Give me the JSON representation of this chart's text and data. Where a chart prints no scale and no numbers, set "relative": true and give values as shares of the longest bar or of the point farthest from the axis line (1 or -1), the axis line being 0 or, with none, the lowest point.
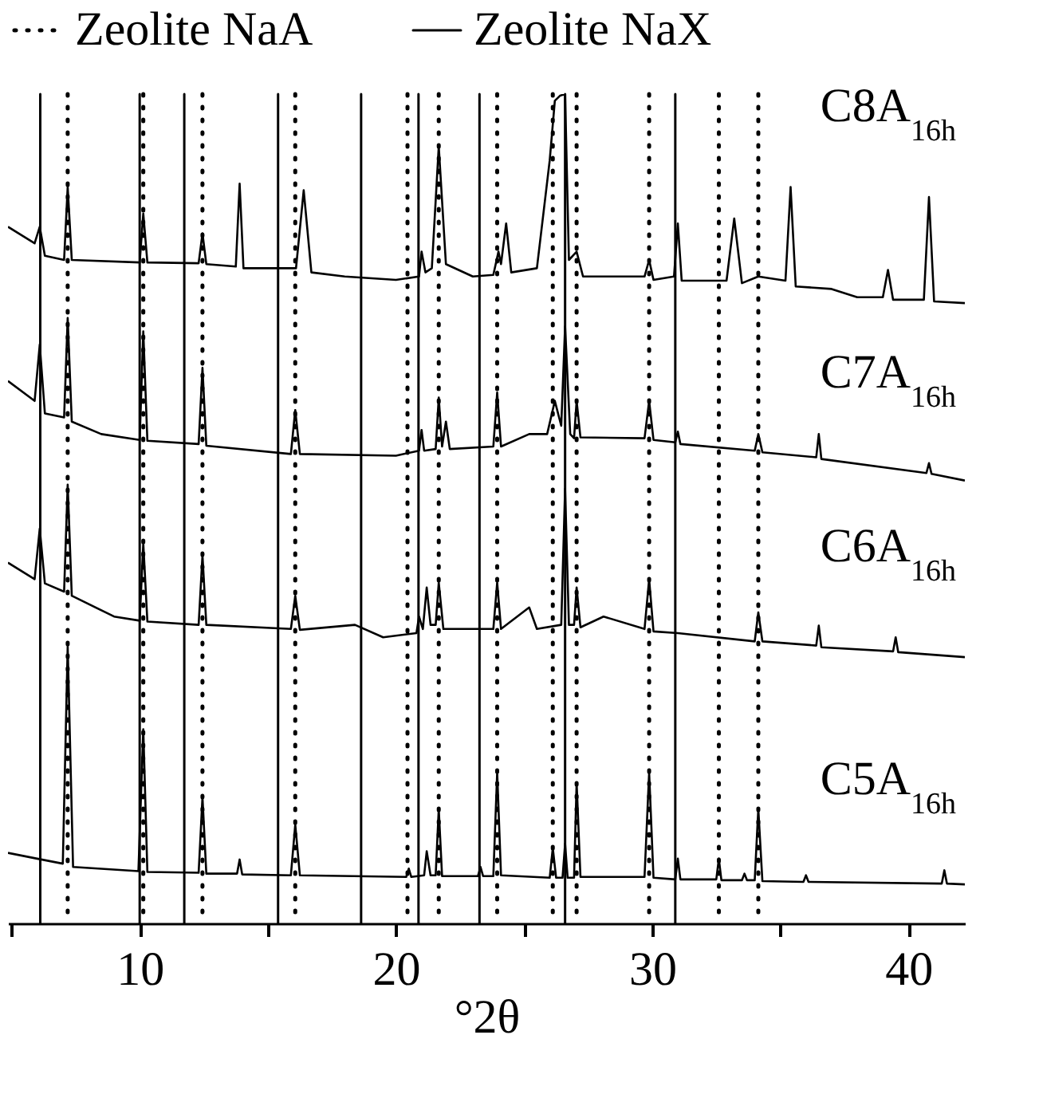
{
  "chart_data": {
    "type": "line",
    "relative": true,
    "xlabel": "°2θ",
    "xlim": [
      4.86,
      42.2
    ],
    "xticks": [
      {
        "value": 5,
        "label": null
      },
      10,
      {
        "value": 15,
        "label": null
      },
      20,
      {
        "value": 25,
        "label": null
      },
      30,
      {
        "value": 35,
        "label": null
      },
      40
    ],
    "grid": false,
    "legend": "top",
    "marker": "none",
    "line_style": "solid",
    "series": [
      {
        "name": "C8A$_{16h}$",
        "color": "#000000",
        "x": [
          4.86,
          5.9,
          6.1,
          6.3,
          7.05,
          7.19,
          7.35,
          10.0,
          10.14,
          10.3,
          12.3,
          12.45,
          12.6,
          13.75,
          13.9,
          14.05,
          16.1,
          16.4,
          16.7,
          18.0,
          20.0,
          20.9,
          21.0,
          21.15,
          21.4,
          21.67,
          21.95,
          23.0,
          23.8,
          24.0,
          24.1,
          24.3,
          24.5,
          25.5,
          26.0,
          26.2,
          26.4,
          26.6,
          26.75,
          27.05,
          27.3,
          29.7,
          29.88,
          30.05,
          30.85,
          31.0,
          31.15,
          32.9,
          33.2,
          33.5,
          34.14,
          35.2,
          35.4,
          35.6,
          37.0,
          38.0,
          39.0,
          39.2,
          39.4,
          40.6,
          40.8,
          41.0,
          42.2
        ],
        "values": [
          0.84,
          0.82,
          0.84,
          0.805,
          0.8,
          0.888,
          0.8,
          0.797,
          0.856,
          0.797,
          0.796,
          0.832,
          0.795,
          0.792,
          0.892,
          0.79,
          0.79,
          0.884,
          0.785,
          0.78,
          0.776,
          0.78,
          0.81,
          0.785,
          0.79,
          0.937,
          0.795,
          0.78,
          0.782,
          0.81,
          0.795,
          0.844,
          0.785,
          0.79,
          0.92,
          0.992,
          0.998,
          1.0,
          0.8,
          0.81,
          0.78,
          0.78,
          0.8,
          0.776,
          0.78,
          0.844,
          0.775,
          0.775,
          0.85,
          0.772,
          0.78,
          0.775,
          0.888,
          0.768,
          0.765,
          0.755,
          0.755,
          0.788,
          0.752,
          0.752,
          0.876,
          0.75,
          0.748
        ]
      },
      {
        "name": "C7A$_{16h}$",
        "color": "#000000",
        "x": [
          4.86,
          5.9,
          6.1,
          6.3,
          7.05,
          7.19,
          7.35,
          8.5,
          10.0,
          10.14,
          10.3,
          12.3,
          12.45,
          12.6,
          15.9,
          16.07,
          16.25,
          20.0,
          20.9,
          21.0,
          21.1,
          21.55,
          21.67,
          21.8,
          21.95,
          22.1,
          23.8,
          23.95,
          24.1,
          25.2,
          25.9,
          26.2,
          26.45,
          26.6,
          26.8,
          26.95,
          27.05,
          27.2,
          29.7,
          29.88,
          30.05,
          30.9,
          31.0,
          31.1,
          34.0,
          34.14,
          34.3,
          36.4,
          36.5,
          36.6,
          40.7,
          40.8,
          40.9,
          42.2
        ],
        "values": [
          0.654,
          0.63,
          0.698,
          0.615,
          0.61,
          0.73,
          0.605,
          0.59,
          0.583,
          0.714,
          0.582,
          0.578,
          0.67,
          0.576,
          0.566,
          0.619,
          0.566,
          0.564,
          0.57,
          0.595,
          0.57,
          0.572,
          0.634,
          0.575,
          0.605,
          0.572,
          0.575,
          0.64,
          0.575,
          0.59,
          0.59,
          0.63,
          0.6,
          0.72,
          0.59,
          0.585,
          0.63,
          0.586,
          0.585,
          0.63,
          0.583,
          0.58,
          0.593,
          0.578,
          0.57,
          0.59,
          0.568,
          0.562,
          0.59,
          0.56,
          0.543,
          0.555,
          0.542,
          0.534
        ]
      },
      {
        "name": "C6A$_{16h}$",
        "color": "#000000",
        "x": [
          4.86,
          5.9,
          6.1,
          6.3,
          7.05,
          7.19,
          7.35,
          9.0,
          10.0,
          10.14,
          10.3,
          12.3,
          12.45,
          12.6,
          15.9,
          16.07,
          16.25,
          18.4,
          19.5,
          20.8,
          20.9,
          21.05,
          21.2,
          21.35,
          21.55,
          21.67,
          21.85,
          23.8,
          23.95,
          24.1,
          25.2,
          25.5,
          26.45,
          26.6,
          26.75,
          26.95,
          27.05,
          27.2,
          28.1,
          29.7,
          29.88,
          30.05,
          31.0,
          34.0,
          34.14,
          34.3,
          36.4,
          36.5,
          36.6,
          39.4,
          39.5,
          39.6,
          42.2
        ],
        "values": [
          0.435,
          0.415,
          0.476,
          0.41,
          0.4,
          0.529,
          0.395,
          0.37,
          0.365,
          0.458,
          0.364,
          0.36,
          0.444,
          0.36,
          0.355,
          0.395,
          0.354,
          0.36,
          0.345,
          0.35,
          0.37,
          0.355,
          0.405,
          0.36,
          0.36,
          0.411,
          0.355,
          0.355,
          0.411,
          0.355,
          0.381,
          0.355,
          0.36,
          0.524,
          0.36,
          0.36,
          0.405,
          0.357,
          0.37,
          0.355,
          0.415,
          0.352,
          0.35,
          0.34,
          0.375,
          0.34,
          0.335,
          0.359,
          0.333,
          0.328,
          0.345,
          0.327,
          0.321
        ]
      },
      {
        "name": "C5A$_{16h}$",
        "color": "#000000",
        "x": [
          4.86,
          6.0,
          7.0,
          7.19,
          7.4,
          9.95,
          10.14,
          10.3,
          12.3,
          12.45,
          12.6,
          13.8,
          13.9,
          14.0,
          15.9,
          16.07,
          16.25,
          20.4,
          20.5,
          20.6,
          21.1,
          21.2,
          21.35,
          21.55,
          21.67,
          21.8,
          23.2,
          23.3,
          23.4,
          23.8,
          23.95,
          24.1,
          26.0,
          26.12,
          26.25,
          26.5,
          26.6,
          26.7,
          26.95,
          27.05,
          27.2,
          29.7,
          29.88,
          30.05,
          30.9,
          31.0,
          31.1,
          32.5,
          32.6,
          32.7,
          33.5,
          33.6,
          33.7,
          34.0,
          34.14,
          34.3,
          35.9,
          36.0,
          36.1,
          41.3,
          41.4,
          41.5,
          42.2
        ],
        "values": [
          0.085,
          0.078,
          0.072,
          0.334,
          0.068,
          0.063,
          0.234,
          0.062,
          0.061,
          0.152,
          0.06,
          0.06,
          0.077,
          0.059,
          0.058,
          0.119,
          0.058,
          0.056,
          0.066,
          0.056,
          0.058,
          0.087,
          0.058,
          0.058,
          0.138,
          0.057,
          0.057,
          0.068,
          0.057,
          0.057,
          0.182,
          0.058,
          0.055,
          0.091,
          0.055,
          0.055,
          0.096,
          0.055,
          0.055,
          0.17,
          0.056,
          0.056,
          0.182,
          0.055,
          0.053,
          0.078,
          0.053,
          0.053,
          0.078,
          0.052,
          0.052,
          0.06,
          0.052,
          0.052,
          0.138,
          0.051,
          0.05,
          0.058,
          0.05,
          0.048,
          0.064,
          0.048,
          0.047
        ]
      }
    ],
    "ref_lines": [
      {
        "axis": "x",
        "value": 7.19,
        "label": "Zeolite NaA",
        "color": "#000000",
        "line_style": "dotted"
      },
      {
        "axis": "x",
        "value": 10.14,
        "color": "#000000",
        "line_style": "dotted"
      },
      {
        "axis": "x",
        "value": 12.45,
        "color": "#000000",
        "line_style": "dotted"
      },
      {
        "axis": "x",
        "value": 16.07,
        "color": "#000000",
        "line_style": "dotted"
      },
      {
        "axis": "x",
        "value": 20.45,
        "color": "#000000",
        "line_style": "dotted"
      },
      {
        "axis": "x",
        "value": 21.67,
        "color": "#000000",
        "line_style": "dotted"
      },
      {
        "axis": "x",
        "value": 23.95,
        "color": "#000000",
        "line_style": "dotted"
      },
      {
        "axis": "x",
        "value": 26.12,
        "color": "#000000",
        "line_style": "dotted"
      },
      {
        "axis": "x",
        "value": 27.05,
        "color": "#000000",
        "line_style": "dotted"
      },
      {
        "axis": "x",
        "value": 29.88,
        "color": "#000000",
        "line_style": "dotted"
      },
      {
        "axis": "x",
        "value": 32.6,
        "color": "#000000",
        "line_style": "dotted"
      },
      {
        "axis": "x",
        "value": 34.14,
        "color": "#000000",
        "line_style": "dotted"
      },
      {
        "axis": "x",
        "value": 6.12,
        "label": "Zeolite NaX",
        "color": "#000000",
        "line_style": "solid"
      },
      {
        "axis": "x",
        "value": 10.0,
        "color": "#000000",
        "line_style": "solid"
      },
      {
        "axis": "x",
        "value": 11.74,
        "color": "#000000",
        "line_style": "solid"
      },
      {
        "axis": "x",
        "value": 15.4,
        "color": "#000000",
        "line_style": "solid"
      },
      {
        "axis": "x",
        "value": 18.64,
        "color": "#000000",
        "line_style": "solid"
      },
      {
        "axis": "x",
        "value": 20.88,
        "color": "#000000",
        "line_style": "solid"
      },
      {
        "axis": "x",
        "value": 23.26,
        "color": "#000000",
        "line_style": "solid"
      },
      {
        "axis": "x",
        "value": 26.6,
        "color": "#000000",
        "line_style": "solid"
      },
      {
        "axis": "x",
        "value": 30.9,
        "color": "#000000",
        "line_style": "solid"
      }
    ]
  }
}
